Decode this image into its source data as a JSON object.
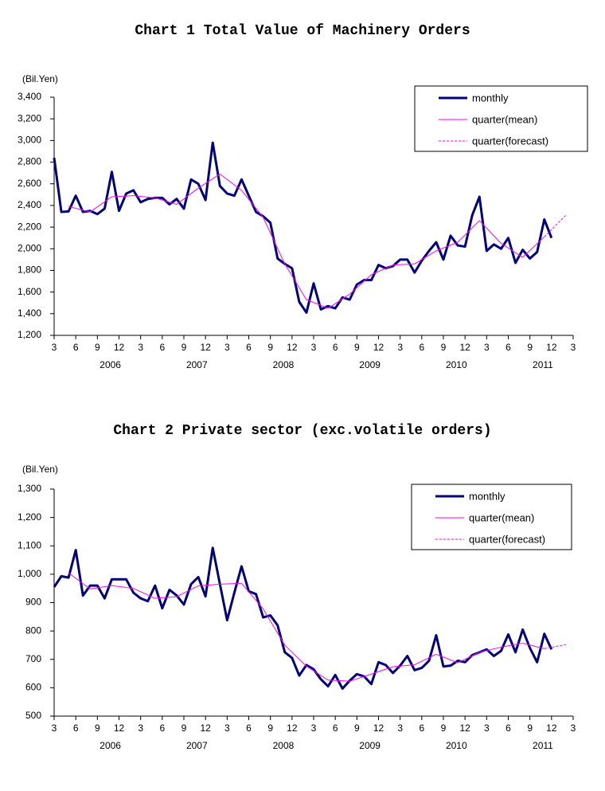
{
  "chart_data": [
    {
      "type": "line",
      "title": "Chart 1 Total Value of Machinery Orders",
      "y_label": "(Bil.Yen)",
      "categories": [
        "3",
        null,
        null,
        "6",
        null,
        null,
        "9",
        null,
        null,
        "12",
        null,
        null,
        "3",
        null,
        null,
        "6",
        null,
        null,
        "9",
        null,
        null,
        "12",
        null,
        null,
        "3",
        null,
        null,
        "6",
        null,
        null,
        "9",
        null,
        null,
        "12",
        null,
        null,
        "3",
        null,
        null,
        "6",
        null,
        null,
        "9",
        null,
        null,
        "12",
        null,
        null,
        "3",
        null,
        null,
        "6",
        null,
        null,
        "9",
        null,
        null,
        "12",
        null,
        null,
        "3",
        null,
        null,
        "6",
        null,
        null,
        "9",
        null,
        null,
        "12",
        null,
        null,
        "3"
      ],
      "years": [
        "2006",
        "2007",
        "2008",
        "2009",
        "2010",
        "2011"
      ],
      "ylim": [
        1200,
        3400
      ],
      "yticks": [
        {
          "value": 1200,
          "label": "1,200"
        },
        {
          "value": 1400,
          "label": "1,400"
        },
        {
          "value": 1600,
          "label": "1,600"
        },
        {
          "value": 1800,
          "label": "1,800"
        },
        {
          "value": 2000,
          "label": "2,000"
        },
        {
          "value": 2200,
          "label": "2,200"
        },
        {
          "value": 2400,
          "label": "2,400"
        },
        {
          "value": 2600,
          "label": "2,600"
        },
        {
          "value": 2800,
          "label": "2,800"
        },
        {
          "value": 3000,
          "label": "3,000"
        },
        {
          "value": 3200,
          "label": "3,200"
        },
        {
          "value": 3400,
          "label": "3,400"
        }
      ],
      "grid": false,
      "legend": "upper right",
      "series": [
        {
          "name": "monthly",
          "color": "#000080",
          "line_width": 3,
          "line_style": "solid",
          "connect_gaps": false,
          "values": [
            2840,
            2340,
            2345,
            2490,
            2340,
            2350,
            2320,
            2370,
            2710,
            2350,
            2510,
            2540,
            2430,
            2460,
            2470,
            2470,
            2410,
            2460,
            2370,
            2640,
            2600,
            2450,
            2980,
            2580,
            2510,
            2490,
            2640,
            2490,
            2340,
            2300,
            2240,
            1910,
            1860,
            1820,
            1510,
            1410,
            1680,
            1440,
            1470,
            1450,
            1550,
            1530,
            1670,
            1710,
            1710,
            1850,
            1820,
            1840,
            1900,
            1900,
            1780,
            1890,
            1980,
            2060,
            1900,
            2120,
            2030,
            2020,
            2310,
            2480,
            1980,
            2040,
            2000,
            2100,
            1870,
            1990,
            1910,
            1970,
            2270,
            2100,
            null,
            null,
            null
          ]
        },
        {
          "name": "quarter(mean)",
          "color": "#ff00ff",
          "line_width": 1,
          "line_style": "solid",
          "connect_gaps": true,
          "values": [
            null,
            null,
            2390,
            null,
            null,
            2340,
            null,
            null,
            2480,
            null,
            null,
            2490,
            null,
            null,
            2470,
            null,
            null,
            2410,
            null,
            null,
            2560,
            null,
            null,
            2690,
            null,
            null,
            2540,
            null,
            null,
            2290,
            null,
            null,
            1860,
            null,
            null,
            1530,
            null,
            null,
            1450,
            null,
            null,
            1580,
            null,
            null,
            1760,
            null,
            null,
            1850,
            null,
            null,
            1860,
            null,
            null,
            1980,
            null,
            null,
            2060,
            null,
            null,
            2260,
            null,
            null,
            2050,
            null,
            null,
            1920,
            null,
            null,
            2110,
            null,
            null,
            null,
            null
          ]
        },
        {
          "name": "quarter(forecast)",
          "color": "#ff00ff",
          "line_width": 1,
          "line_style": "dashed",
          "connect_gaps": true,
          "values": [
            null,
            null,
            null,
            null,
            null,
            null,
            null,
            null,
            null,
            null,
            null,
            null,
            null,
            null,
            null,
            null,
            null,
            null,
            null,
            null,
            null,
            null,
            null,
            null,
            null,
            null,
            null,
            null,
            null,
            null,
            null,
            null,
            null,
            null,
            null,
            null,
            null,
            null,
            null,
            null,
            null,
            null,
            null,
            null,
            null,
            null,
            null,
            null,
            null,
            null,
            null,
            null,
            null,
            null,
            null,
            null,
            null,
            null,
            null,
            null,
            null,
            null,
            null,
            null,
            null,
            null,
            null,
            null,
            2110,
            null,
            null,
            2310,
            null
          ]
        }
      ]
    },
    {
      "type": "line",
      "title": "Chart 2 Private sector (exc.volatile orders)",
      "y_label": "(Bil.Yen)",
      "categories": [
        "3",
        null,
        null,
        "6",
        null,
        null,
        "9",
        null,
        null,
        "12",
        null,
        null,
        "3",
        null,
        null,
        "6",
        null,
        null,
        "9",
        null,
        null,
        "12",
        null,
        null,
        "3",
        null,
        null,
        "6",
        null,
        null,
        "9",
        null,
        null,
        "12",
        null,
        null,
        "3",
        null,
        null,
        "6",
        null,
        null,
        "9",
        null,
        null,
        "12",
        null,
        null,
        "3",
        null,
        null,
        "6",
        null,
        null,
        "9",
        null,
        null,
        "12",
        null,
        null,
        "3",
        null,
        null,
        "6",
        null,
        null,
        "9",
        null,
        null,
        "12",
        null,
        null,
        "3"
      ],
      "years": [
        "2006",
        "2007",
        "2008",
        "2009",
        "2010",
        "2011"
      ],
      "ylim": [
        500,
        1300
      ],
      "yticks": [
        500,
        600,
        700,
        800,
        900,
        {
          "value": 1000,
          "label": "1,000"
        },
        {
          "value": 1100,
          "label": "1,100"
        },
        {
          "value": 1200,
          "label": "1,200"
        },
        {
          "value": 1300,
          "label": "1,300"
        }
      ],
      "grid": false,
      "legend": "upper right",
      "series": [
        {
          "name": "monthly",
          "color": "#000080",
          "line_width": 3,
          "line_style": "solid",
          "connect_gaps": false,
          "values": [
            955,
            993,
            988,
            1085,
            925,
            960,
            960,
            915,
            982,
            982,
            982,
            935,
            915,
            905,
            960,
            880,
            945,
            925,
            893,
            965,
            990,
            922,
            1093,
            965,
            838,
            935,
            1028,
            940,
            930,
            848,
            855,
            820,
            725,
            705,
            643,
            680,
            665,
            630,
            605,
            645,
            597,
            625,
            648,
            640,
            613,
            690,
            680,
            652,
            678,
            712,
            662,
            670,
            695,
            785,
            675,
            678,
            695,
            690,
            715,
            725,
            735,
            712,
            730,
            788,
            725,
            805,
            740,
            690,
            790,
            735,
            null,
            null,
            null
          ]
        },
        {
          "name": "quarter(mean)",
          "color": "#ff00ff",
          "line_width": 1,
          "line_style": "solid",
          "connect_gaps": true,
          "values": [
            null,
            null,
            1005,
            null,
            null,
            948,
            null,
            null,
            960,
            null,
            null,
            950,
            null,
            null,
            915,
            null,
            null,
            921,
            null,
            null,
            959,
            null,
            null,
            965,
            null,
            null,
            968,
            null,
            null,
            878,
            null,
            null,
            750,
            null,
            null,
            676,
            null,
            null,
            627,
            null,
            null,
            623,
            null,
            null,
            648,
            null,
            null,
            674,
            null,
            null,
            681,
            null,
            null,
            718,
            null,
            null,
            688,
            null,
            null,
            725,
            null,
            null,
            743,
            null,
            null,
            757,
            null,
            null,
            738,
            null,
            null,
            null,
            null
          ]
        },
        {
          "name": "quarter(forecast)",
          "color": "#ff00ff",
          "line_width": 1,
          "line_style": "dashed",
          "connect_gaps": true,
          "values": [
            null,
            null,
            null,
            null,
            null,
            null,
            null,
            null,
            null,
            null,
            null,
            null,
            null,
            null,
            null,
            null,
            null,
            null,
            null,
            null,
            null,
            null,
            null,
            null,
            null,
            null,
            null,
            null,
            null,
            null,
            null,
            null,
            null,
            null,
            null,
            null,
            null,
            null,
            null,
            null,
            null,
            null,
            null,
            null,
            null,
            null,
            null,
            null,
            null,
            null,
            null,
            null,
            null,
            null,
            null,
            null,
            null,
            null,
            null,
            null,
            null,
            null,
            null,
            null,
            null,
            null,
            null,
            null,
            738,
            null,
            null,
            752,
            null
          ]
        }
      ]
    }
  ]
}
